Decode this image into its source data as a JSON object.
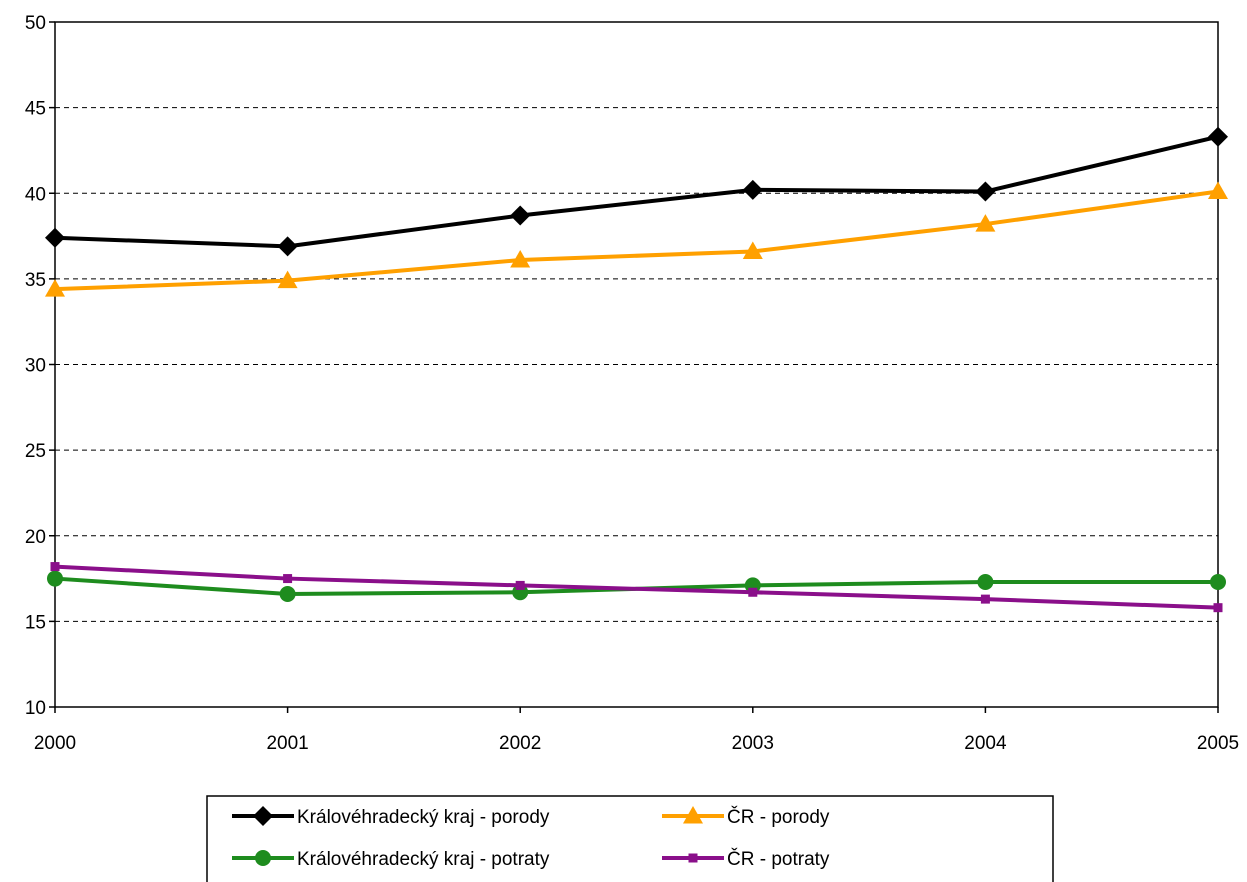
{
  "chart_data": {
    "type": "line",
    "title": "",
    "xlabel": "",
    "ylabel": "",
    "x": [
      "2000",
      "2001",
      "2002",
      "2003",
      "2004",
      "2005"
    ],
    "ylim": [
      10,
      50
    ],
    "yticks": [
      "10",
      "15",
      "20",
      "25",
      "30",
      "35",
      "40",
      "45",
      "50"
    ],
    "grid": "horizontal dashed",
    "legend_position": "bottom",
    "series": [
      {
        "name": "Královéhradecký kraj - porody",
        "values": [
          37.4,
          36.9,
          38.7,
          40.2,
          40.1,
          43.3
        ],
        "color": "#000000",
        "marker": "diamond"
      },
      {
        "name": "ČR - porody",
        "values": [
          34.4,
          34.9,
          36.1,
          36.6,
          38.2,
          40.1
        ],
        "color": "#FFA000",
        "marker": "triangle"
      },
      {
        "name": "Královéhradecký kraj - potraty",
        "values": [
          17.5,
          16.6,
          16.7,
          17.1,
          17.3,
          17.3
        ],
        "color": "#1E8C1E",
        "marker": "circle"
      },
      {
        "name": "ČR - potraty",
        "values": [
          18.2,
          17.5,
          17.1,
          16.7,
          16.3,
          15.8
        ],
        "color": "#8A0F8A",
        "marker": "square"
      }
    ]
  }
}
